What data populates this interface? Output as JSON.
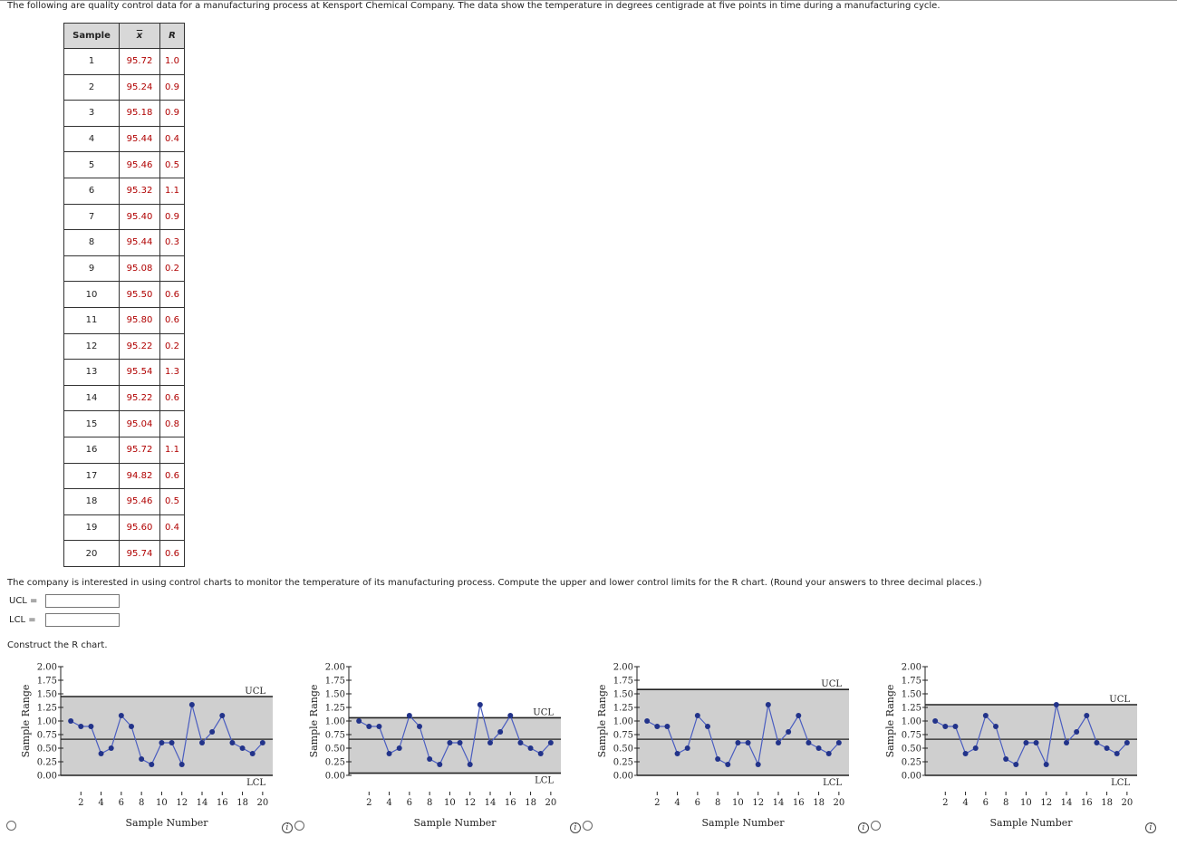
{
  "intro_text": "The following are quality control data for a manufacturing process at Kensport Chemical Company. The data show the temperature in degrees centigrade at five points in time during a manufacturing cycle.",
  "table": {
    "headers": [
      "Sample",
      "x",
      "R"
    ],
    "rows": [
      {
        "sample": "1",
        "xbar": "95.72",
        "r": "1.0"
      },
      {
        "sample": "2",
        "xbar": "95.24",
        "r": "0.9"
      },
      {
        "sample": "3",
        "xbar": "95.18",
        "r": "0.9"
      },
      {
        "sample": "4",
        "xbar": "95.44",
        "r": "0.4"
      },
      {
        "sample": "5",
        "xbar": "95.46",
        "r": "0.5"
      },
      {
        "sample": "6",
        "xbar": "95.32",
        "r": "1.1"
      },
      {
        "sample": "7",
        "xbar": "95.40",
        "r": "0.9"
      },
      {
        "sample": "8",
        "xbar": "95.44",
        "r": "0.3"
      },
      {
        "sample": "9",
        "xbar": "95.08",
        "r": "0.2"
      },
      {
        "sample": "10",
        "xbar": "95.50",
        "r": "0.6"
      },
      {
        "sample": "11",
        "xbar": "95.80",
        "r": "0.6"
      },
      {
        "sample": "12",
        "xbar": "95.22",
        "r": "0.2"
      },
      {
        "sample": "13",
        "xbar": "95.54",
        "r": "1.3"
      },
      {
        "sample": "14",
        "xbar": "95.22",
        "r": "0.6"
      },
      {
        "sample": "15",
        "xbar": "95.04",
        "r": "0.8"
      },
      {
        "sample": "16",
        "xbar": "95.72",
        "r": "1.1"
      },
      {
        "sample": "17",
        "xbar": "94.82",
        "r": "0.6"
      },
      {
        "sample": "18",
        "xbar": "95.46",
        "r": "0.5"
      },
      {
        "sample": "19",
        "xbar": "95.60",
        "r": "0.4"
      },
      {
        "sample": "20",
        "xbar": "95.74",
        "r": "0.6"
      }
    ]
  },
  "question_text": "The company is interested in using control charts to monitor the temperature of its manufacturing process. Compute the upper and lower control limits for the R chart. (Round your answers to three decimal places.)",
  "ucl_label": "UCL =",
  "lcl_label": "LCL =",
  "ucl_value": "",
  "lcl_value": "",
  "construct_text": "Construct the R chart.",
  "chart_data": [
    {
      "type": "line",
      "xlabel": "Sample Number",
      "ylabel": "Sample Range",
      "x": [
        1,
        2,
        3,
        4,
        5,
        6,
        7,
        8,
        9,
        10,
        11,
        12,
        13,
        14,
        15,
        16,
        17,
        18,
        19,
        20
      ],
      "y": [
        1.0,
        0.9,
        0.9,
        0.4,
        0.5,
        1.1,
        0.9,
        0.3,
        0.2,
        0.6,
        0.6,
        0.2,
        1.3,
        0.6,
        0.8,
        1.1,
        0.6,
        0.5,
        0.4,
        0.6
      ],
      "ucl": 1.45,
      "center": 0.665,
      "lcl": 0.0,
      "ucl_label": "UCL",
      "lcl_label": "LCL",
      "ylim": [
        0,
        2
      ],
      "xticks": [
        "2",
        "4",
        "6",
        "8",
        "10",
        "12",
        "14",
        "16",
        "18",
        "20"
      ],
      "yticks": [
        "0.00",
        "0.25",
        "0.50",
        "0.75",
        "1.00",
        "1.25",
        "1.50",
        "1.75",
        "2.00"
      ]
    },
    {
      "type": "line",
      "xlabel": "Sample Number",
      "ylabel": "Sample Range",
      "x": [
        1,
        2,
        3,
        4,
        5,
        6,
        7,
        8,
        9,
        10,
        11,
        12,
        13,
        14,
        15,
        16,
        17,
        18,
        19,
        20
      ],
      "y": [
        1.0,
        0.9,
        0.9,
        0.4,
        0.5,
        1.1,
        0.9,
        0.3,
        0.2,
        0.6,
        0.6,
        0.2,
        1.3,
        0.6,
        0.8,
        1.1,
        0.6,
        0.5,
        0.4,
        0.6
      ],
      "ucl": 1.06,
      "center": 0.665,
      "lcl": 0.04,
      "ucl_label": "UCL",
      "lcl_label": "LCL",
      "ylim": [
        0,
        2
      ],
      "xticks": [
        "2",
        "4",
        "6",
        "8",
        "10",
        "12",
        "14",
        "16",
        "18",
        "20"
      ],
      "yticks": [
        "0.00",
        "0.25",
        "0.50",
        "0.75",
        "1.00",
        "1.25",
        "1.50",
        "1.75",
        "2.00"
      ]
    },
    {
      "type": "line",
      "xlabel": "Sample Number",
      "ylabel": "Sample Range",
      "x": [
        1,
        2,
        3,
        4,
        5,
        6,
        7,
        8,
        9,
        10,
        11,
        12,
        13,
        14,
        15,
        16,
        17,
        18,
        19,
        20
      ],
      "y": [
        1.0,
        0.9,
        0.9,
        0.4,
        0.5,
        1.1,
        0.9,
        0.3,
        0.2,
        0.6,
        0.6,
        0.2,
        1.3,
        0.6,
        0.8,
        1.1,
        0.6,
        0.5,
        0.4,
        0.6
      ],
      "ucl": 1.58,
      "center": 0.665,
      "lcl": 0.0,
      "ucl_label": "UCL",
      "lcl_label": "LCL",
      "ylim": [
        0,
        2
      ],
      "xticks": [
        "2",
        "4",
        "6",
        "8",
        "10",
        "12",
        "14",
        "16",
        "18",
        "20"
      ],
      "yticks": [
        "0.00",
        "0.25",
        "0.50",
        "0.75",
        "1.00",
        "1.25",
        "1.50",
        "1.75",
        "2.00"
      ]
    },
    {
      "type": "line",
      "xlabel": "Sample Number",
      "ylabel": "Sample Range",
      "x": [
        1,
        2,
        3,
        4,
        5,
        6,
        7,
        8,
        9,
        10,
        11,
        12,
        13,
        14,
        15,
        16,
        17,
        18,
        19,
        20
      ],
      "y": [
        1.0,
        0.9,
        0.9,
        0.4,
        0.5,
        1.1,
        0.9,
        0.3,
        0.2,
        0.6,
        0.6,
        0.2,
        1.3,
        0.6,
        0.8,
        1.1,
        0.6,
        0.5,
        0.4,
        0.6
      ],
      "ucl": 1.3,
      "center": 0.665,
      "lcl": 0.0,
      "ucl_label": "UCL",
      "lcl_label": "LCL",
      "ylim": [
        0,
        2
      ],
      "xticks": [
        "2",
        "4",
        "6",
        "8",
        "10",
        "12",
        "14",
        "16",
        "18",
        "20"
      ],
      "yticks": [
        "0.00",
        "0.25",
        "0.50",
        "0.75",
        "1.00",
        "1.25",
        "1.50",
        "1.75",
        "2.00"
      ]
    }
  ],
  "colors": {
    "line": "#4a5dc0",
    "marker": "#22338a",
    "band": "#cfcfcf",
    "limit": "#222222",
    "value_text": "#b00000"
  },
  "icons": {
    "radio": "radio-button-icon",
    "info": "info-icon"
  },
  "info_glyph": "i"
}
